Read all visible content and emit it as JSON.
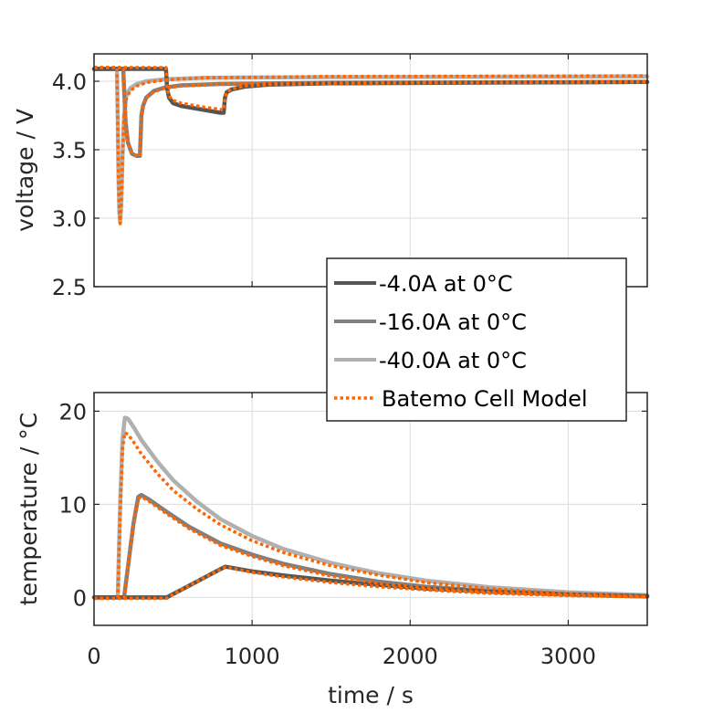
{
  "chart_data": [
    {
      "type": "line",
      "id": "voltage",
      "title": "",
      "xlabel": "",
      "ylabel": "voltage / V",
      "xlim": [
        0,
        3500
      ],
      "ylim": [
        2.5,
        4.2
      ],
      "xticks": [
        0,
        1000,
        2000,
        3000
      ],
      "yticks": [
        2.5,
        3.0,
        3.5,
        4.0
      ],
      "ytick_labels": [
        "2.5",
        "3.0",
        "3.5",
        "4.0"
      ],
      "show_xtick_labels": false,
      "grid": true,
      "series": [
        {
          "name": "-4.0A at 0°C",
          "style": "solid",
          "color": "#555555",
          "x": [
            0,
            455,
            462,
            475,
            500,
            550,
            600,
            700,
            800,
            820,
            828,
            840,
            870,
            950,
            1100,
            1500,
            2500,
            3500
          ],
          "y": [
            4.09,
            4.09,
            3.95,
            3.88,
            3.84,
            3.82,
            3.81,
            3.79,
            3.77,
            3.77,
            3.88,
            3.92,
            3.94,
            3.96,
            3.975,
            3.985,
            3.99,
            3.995
          ]
        },
        {
          "name": "-16.0A at 0°C",
          "style": "solid",
          "color": "#7f7f7f",
          "x": [
            0,
            185,
            190,
            200,
            215,
            240,
            270,
            290,
            295,
            300,
            310,
            330,
            380,
            450,
            550,
            800,
            1500,
            3500
          ],
          "y": [
            4.09,
            4.09,
            3.95,
            3.7,
            3.55,
            3.47,
            3.455,
            3.455,
            3.6,
            3.75,
            3.82,
            3.88,
            3.93,
            3.955,
            3.97,
            3.98,
            3.99,
            3.995
          ]
        },
        {
          "name": "-40.0A at 0°C",
          "style": "solid",
          "color": "#b0b0b0",
          "x": [
            0,
            145,
            150,
            155,
            160,
            165,
            172,
            180,
            190,
            205,
            230,
            270,
            330,
            450,
            700,
            1500,
            3500
          ],
          "y": [
            4.09,
            4.09,
            3.7,
            3.3,
            3.05,
            2.97,
            3.1,
            3.45,
            3.75,
            3.9,
            3.95,
            3.98,
            4.0,
            4.015,
            4.025,
            4.03,
            4.035
          ]
        },
        {
          "name": "Batemo Cell Model",
          "style": "dotted",
          "color": "#ff6600",
          "x": [],
          "y": []
        }
      ],
      "model_series": [
        {
          "x": [
            0,
            455,
            462,
            475,
            500,
            550,
            600,
            700,
            800,
            820,
            828,
            840,
            870,
            950,
            1100,
            1500,
            2500,
            3500
          ],
          "y": [
            4.1,
            4.1,
            3.96,
            3.89,
            3.86,
            3.84,
            3.83,
            3.81,
            3.795,
            3.79,
            3.88,
            3.92,
            3.945,
            3.965,
            3.975,
            3.985,
            3.99,
            3.995
          ]
        },
        {
          "x": [
            0,
            185,
            190,
            200,
            215,
            240,
            270,
            290,
            295,
            300,
            310,
            330,
            380,
            450,
            550,
            800,
            1500,
            3500
          ],
          "y": [
            4.1,
            4.1,
            3.95,
            3.7,
            3.55,
            3.47,
            3.455,
            3.455,
            3.6,
            3.75,
            3.82,
            3.88,
            3.925,
            3.95,
            3.965,
            3.98,
            3.99,
            3.995
          ]
        },
        {
          "x": [
            0,
            145,
            150,
            155,
            160,
            165,
            172,
            180,
            190,
            205,
            230,
            270,
            330,
            450,
            700,
            1500,
            3500
          ],
          "y": [
            4.1,
            4.1,
            3.7,
            3.3,
            3.05,
            2.96,
            3.1,
            3.45,
            3.75,
            3.88,
            3.93,
            3.965,
            3.99,
            4.01,
            4.025,
            4.035,
            4.04
          ]
        }
      ]
    },
    {
      "type": "line",
      "id": "temperature",
      "title": "",
      "xlabel": "time / s",
      "ylabel": "temperature / °C",
      "xlim": [
        0,
        3500
      ],
      "ylim": [
        -3,
        22
      ],
      "xticks": [
        0,
        1000,
        2000,
        3000
      ],
      "xtick_labels": [
        "0",
        "1000",
        "2000",
        "3000"
      ],
      "yticks": [
        0,
        10,
        20
      ],
      "ytick_labels": [
        "0",
        "10",
        "20"
      ],
      "grid": true,
      "series": [
        {
          "name": "-4.0A at 0°C",
          "style": "solid",
          "color": "#555555",
          "x": [
            0,
            460,
            550,
            650,
            750,
            830,
            900,
            1000,
            1200,
            1500,
            1800,
            2100,
            2500,
            3000,
            3500
          ],
          "y": [
            0,
            0,
            0.8,
            1.7,
            2.6,
            3.3,
            3.1,
            2.8,
            2.35,
            1.8,
            1.35,
            0.95,
            0.6,
            0.3,
            0.1
          ]
        },
        {
          "name": "-16.0A at 0°C",
          "style": "solid",
          "color": "#7f7f7f",
          "x": [
            0,
            190,
            220,
            250,
            280,
            300,
            350,
            450,
            600,
            800,
            1000,
            1200,
            1500,
            1800,
            2100,
            2500,
            3000,
            3500
          ],
          "y": [
            0,
            0,
            4,
            8,
            10.8,
            11.0,
            10.5,
            9.3,
            7.6,
            5.8,
            4.6,
            3.6,
            2.5,
            1.7,
            1.15,
            0.7,
            0.35,
            0.15
          ]
        },
        {
          "name": "-40.0A at 0°C",
          "style": "solid",
          "color": "#b0b0b0",
          "x": [
            0,
            150,
            165,
            180,
            195,
            215,
            250,
            300,
            400,
            500,
            650,
            800,
            1000,
            1200,
            1500,
            1800,
            2100,
            2500,
            3000,
            3500
          ],
          "y": [
            0,
            0,
            10,
            17,
            19.3,
            19.2,
            18.3,
            16.9,
            14.6,
            12.6,
            10.3,
            8.4,
            6.6,
            5.2,
            3.7,
            2.6,
            1.8,
            1.1,
            0.55,
            0.25
          ]
        },
        {
          "name": "Batemo Cell Model",
          "style": "dotted",
          "color": "#ff6600",
          "x": [],
          "y": []
        }
      ],
      "model_series": [
        {
          "x": [
            0,
            460,
            550,
            650,
            750,
            830,
            900,
            1000,
            1200,
            1500,
            1800,
            2100,
            2500,
            3000,
            3500
          ],
          "y": [
            -0.1,
            -0.1,
            0.8,
            1.7,
            2.6,
            3.25,
            3.05,
            2.7,
            2.2,
            1.6,
            1.15,
            0.8,
            0.45,
            0.2,
            0.05
          ]
        },
        {
          "x": [
            0,
            190,
            220,
            250,
            280,
            300,
            350,
            450,
            600,
            800,
            1000,
            1200,
            1500,
            1800,
            2100,
            2500,
            3000,
            3500
          ],
          "y": [
            -0.1,
            -0.1,
            4,
            8,
            10.6,
            10.8,
            10.3,
            9.1,
            7.4,
            5.6,
            4.4,
            3.4,
            2.3,
            1.5,
            1.0,
            0.55,
            0.25,
            0.05
          ]
        },
        {
          "x": [
            0,
            150,
            165,
            180,
            195,
            215,
            250,
            300,
            400,
            500,
            650,
            800,
            1000,
            1200,
            1500,
            1800,
            2100,
            2500,
            3000,
            3500
          ],
          "y": [
            -0.1,
            -0.1,
            9,
            16,
            17.7,
            17.5,
            16.7,
            15.4,
            13.3,
            11.5,
            9.5,
            7.8,
            6.1,
            4.8,
            3.4,
            2.4,
            1.6,
            0.95,
            0.4,
            0.1
          ]
        }
      ]
    }
  ],
  "legend": {
    "placement": "center-right",
    "entries": [
      {
        "label": "-4.0A at 0°C",
        "color": "#555555",
        "style": "solid"
      },
      {
        "label": "-16.0A at 0°C",
        "color": "#7f7f7f",
        "style": "solid"
      },
      {
        "label": "-40.0A at 0°C",
        "color": "#b0b0b0",
        "style": "solid"
      },
      {
        "label": "Batemo Cell Model",
        "color": "#ff6600",
        "style": "dotted"
      }
    ]
  }
}
